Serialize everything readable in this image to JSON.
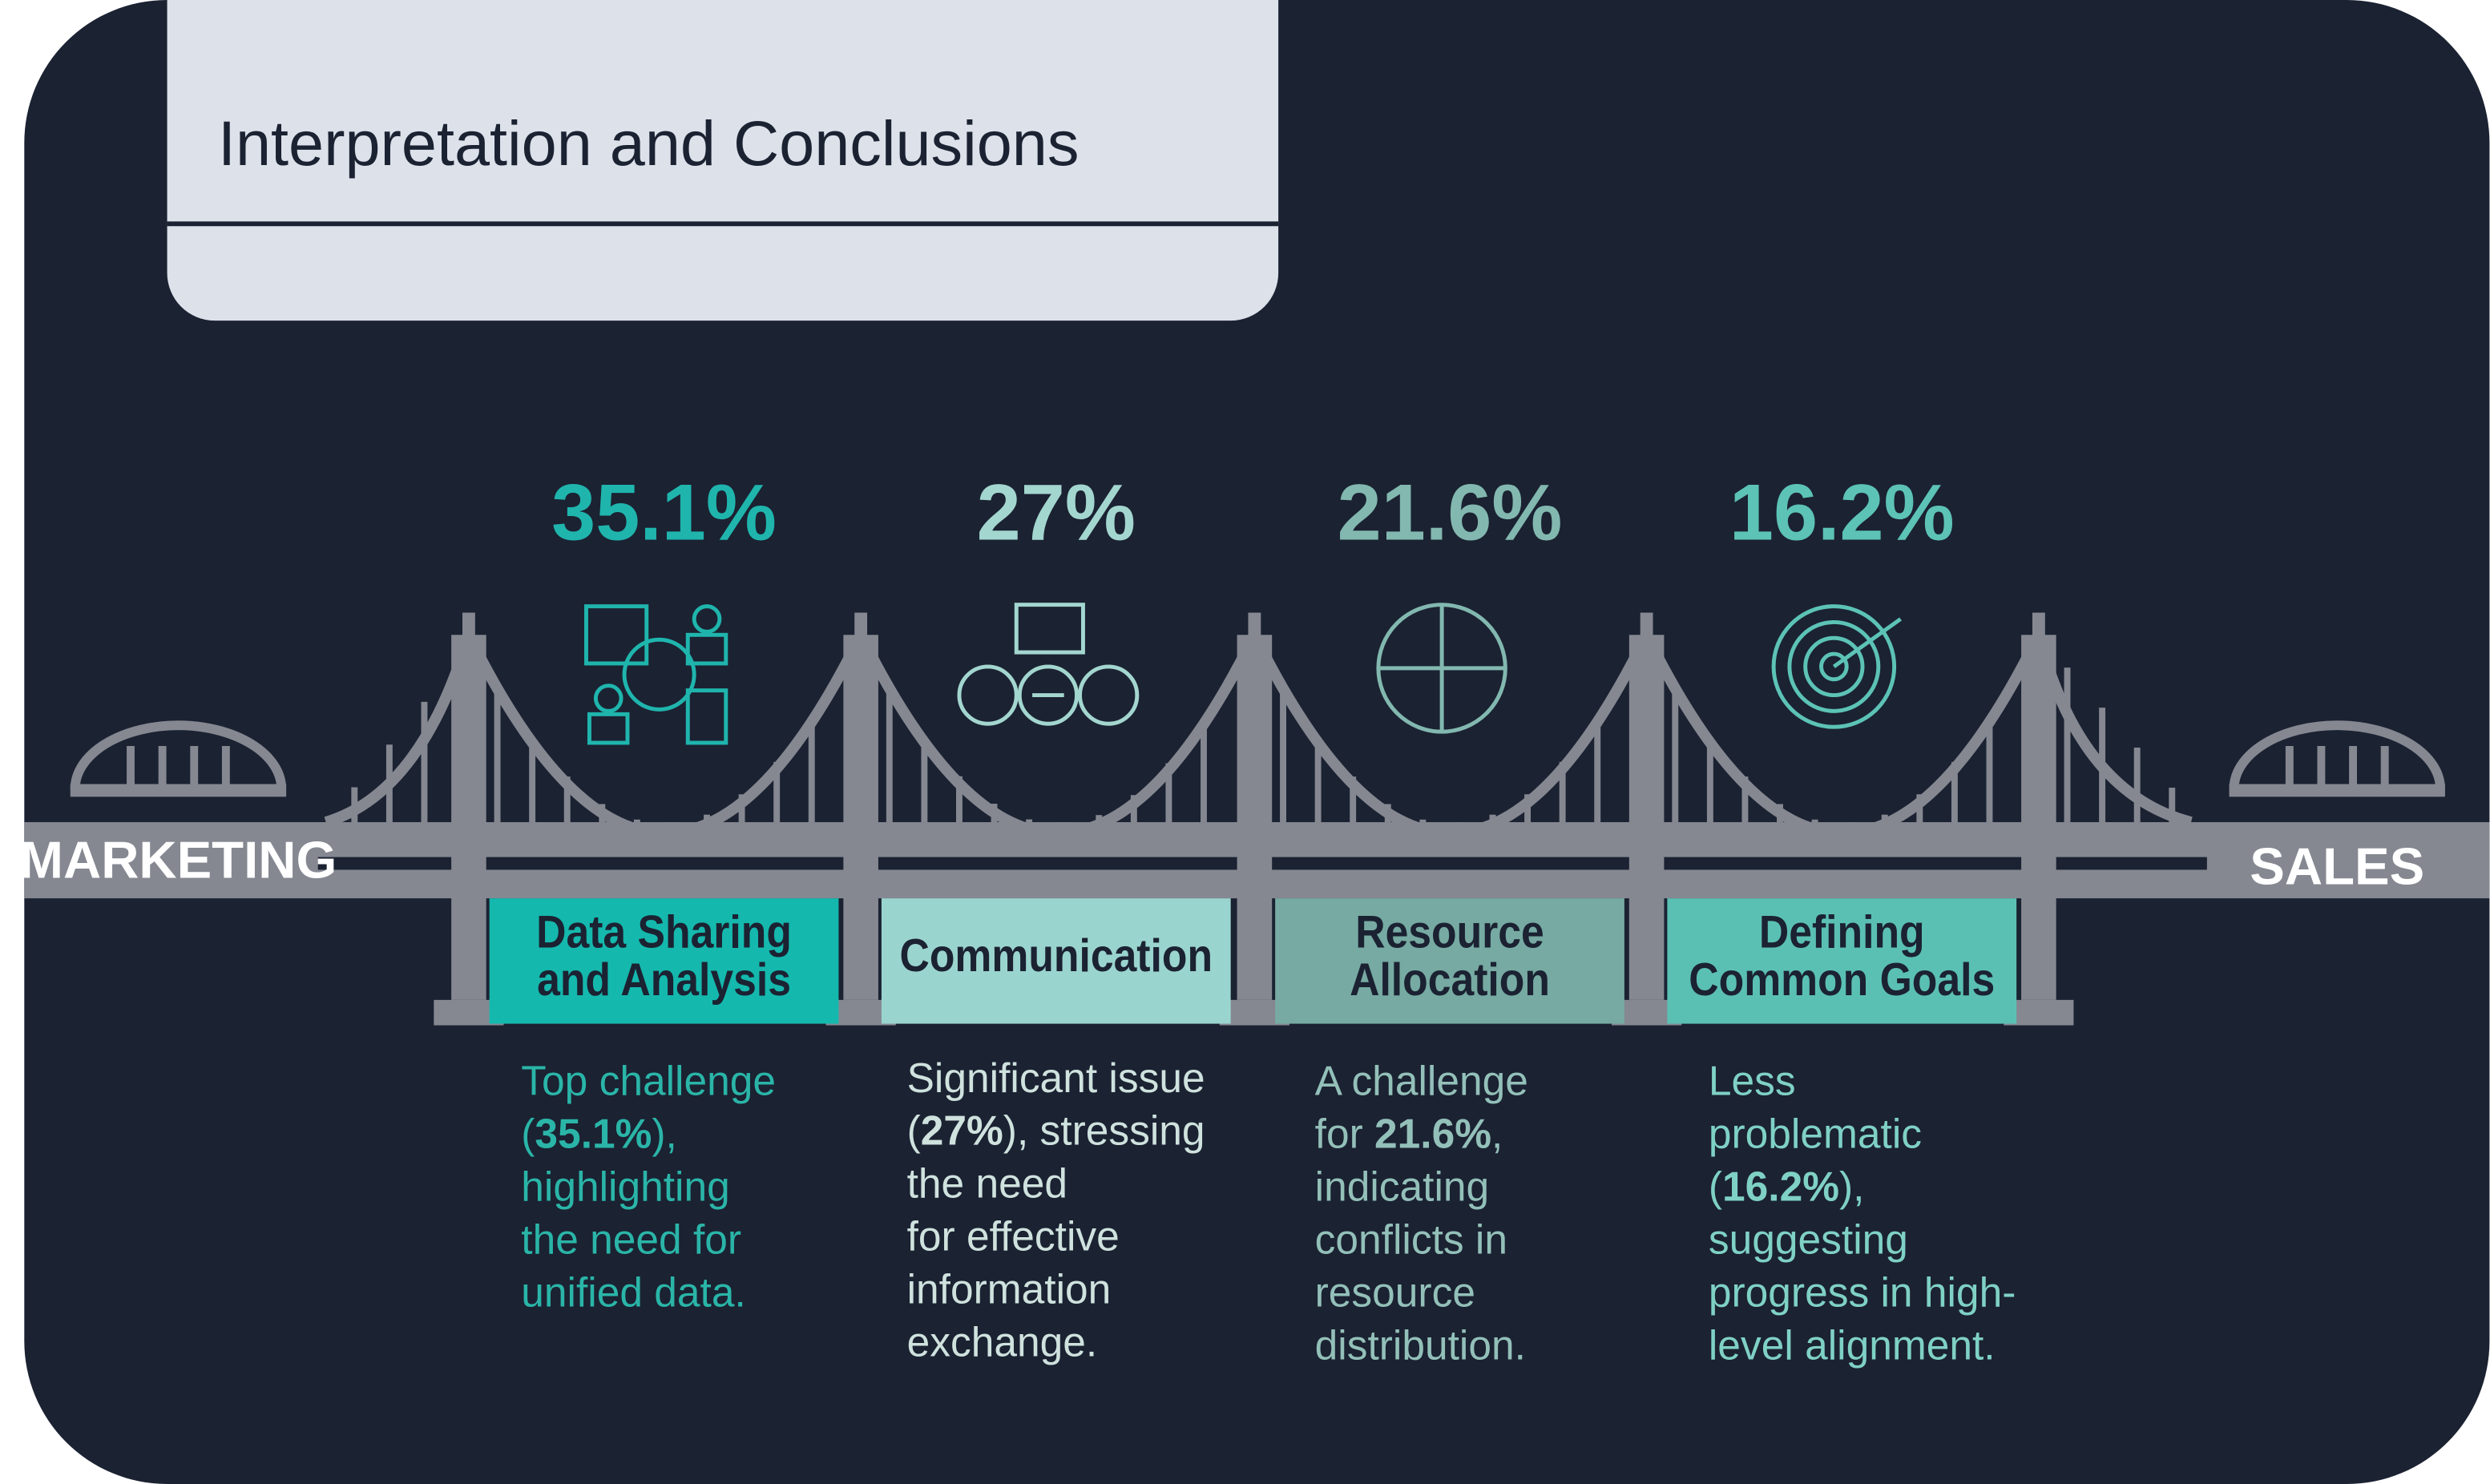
{
  "title": "Interpretation and Conclusions",
  "left_label": "MARKETING",
  "right_label": "SALES",
  "items": [
    {
      "percent": "35.1%",
      "label": [
        "Data Sharing",
        "and Analysis"
      ],
      "color": "#1fb5ad",
      "box_color": "#15b8ad",
      "text_color": "#2ab5a8",
      "description": [
        [
          "Top challenge"
        ],
        [
          "(",
          "35.1%",
          "),"
        ],
        [
          "highlighting"
        ],
        [
          "the need for"
        ],
        [
          "unified data."
        ]
      ]
    },
    {
      "percent": "27%",
      "label": [
        "Communication"
      ],
      "color": "#a3d6cf",
      "box_color": "#9ad4ce",
      "text_color": "#cfe2de",
      "description": [
        [
          "Significant issue"
        ],
        [
          "(",
          "27%",
          "), stressing"
        ],
        [
          "the need"
        ],
        [
          "for effective"
        ],
        [
          "information"
        ],
        [
          "exchange."
        ]
      ]
    },
    {
      "percent": "21.6%",
      "label": [
        "Resource",
        "Allocation"
      ],
      "color": "#82b8af",
      "box_color": "#76aaa2",
      "text_color": "#93c0b9",
      "description": [
        [
          "A challenge"
        ],
        [
          "for ",
          "21.6%",
          ","
        ],
        [
          "indicating"
        ],
        [
          "conflicts in"
        ],
        [
          "resource"
        ],
        [
          "distribution."
        ]
      ]
    },
    {
      "percent": "16.2%",
      "label": [
        "Defining",
        "Common Goals"
      ],
      "color": "#5cc3b6",
      "box_color": "#5bc0b4",
      "text_color": "#7fd1c5",
      "description": [
        [
          "Less"
        ],
        [
          "problematic"
        ],
        [
          "(",
          "16.2%",
          "),"
        ],
        [
          "suggesting"
        ],
        [
          "progress in high-"
        ],
        [
          "level alignment."
        ]
      ]
    }
  ]
}
